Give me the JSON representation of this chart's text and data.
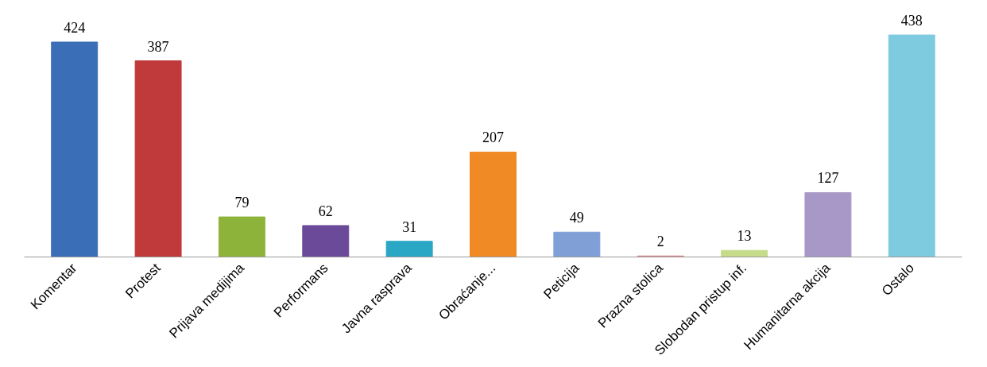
{
  "chart_data": {
    "type": "bar",
    "categories": [
      "Komentar",
      "Protest",
      "Prijava medijima",
      "Performans",
      "Javna rasprava",
      "Obraćanje...",
      "Peticija",
      "Prazna stolica",
      "Slobodan pristup inf.",
      "Humanitarna akcija",
      "Ostalo"
    ],
    "values": [
      424,
      387,
      79,
      62,
      31,
      207,
      49,
      2,
      13,
      127,
      438
    ],
    "colors": [
      "#3a6fb8",
      "#c0393b",
      "#8db33a",
      "#6b4a9a",
      "#2aa7c4",
      "#f08a24",
      "#7f9fd6",
      "#d98080",
      "#c6dc8a",
      "#a898c8",
      "#7ecbe0"
    ],
    "data_labels": true,
    "grid": false
  }
}
